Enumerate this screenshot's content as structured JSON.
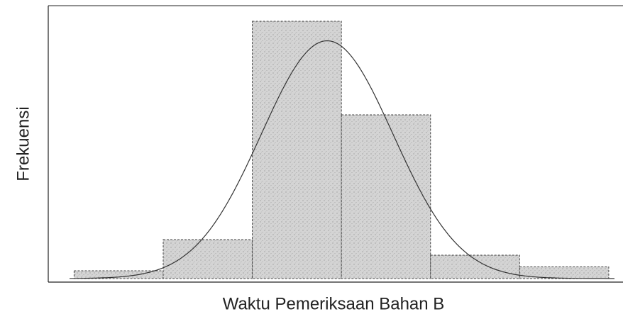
{
  "chart_data": {
    "type": "histogram",
    "xlabel": "Waktu Pemeriksaan Bahan B",
    "ylabel": "Frekuensi",
    "bins": [
      0,
      1,
      2,
      3,
      4,
      5,
      6
    ],
    "values": [
      1,
      5,
      33,
      21,
      3,
      1.5
    ],
    "xlim": [
      -0.29,
      6.16
    ],
    "ylim": [
      0,
      35
    ],
    "color": "#c8c8c8",
    "curve": {
      "mean": 2.84,
      "sd": 0.74,
      "peak": 30.5
    }
  }
}
